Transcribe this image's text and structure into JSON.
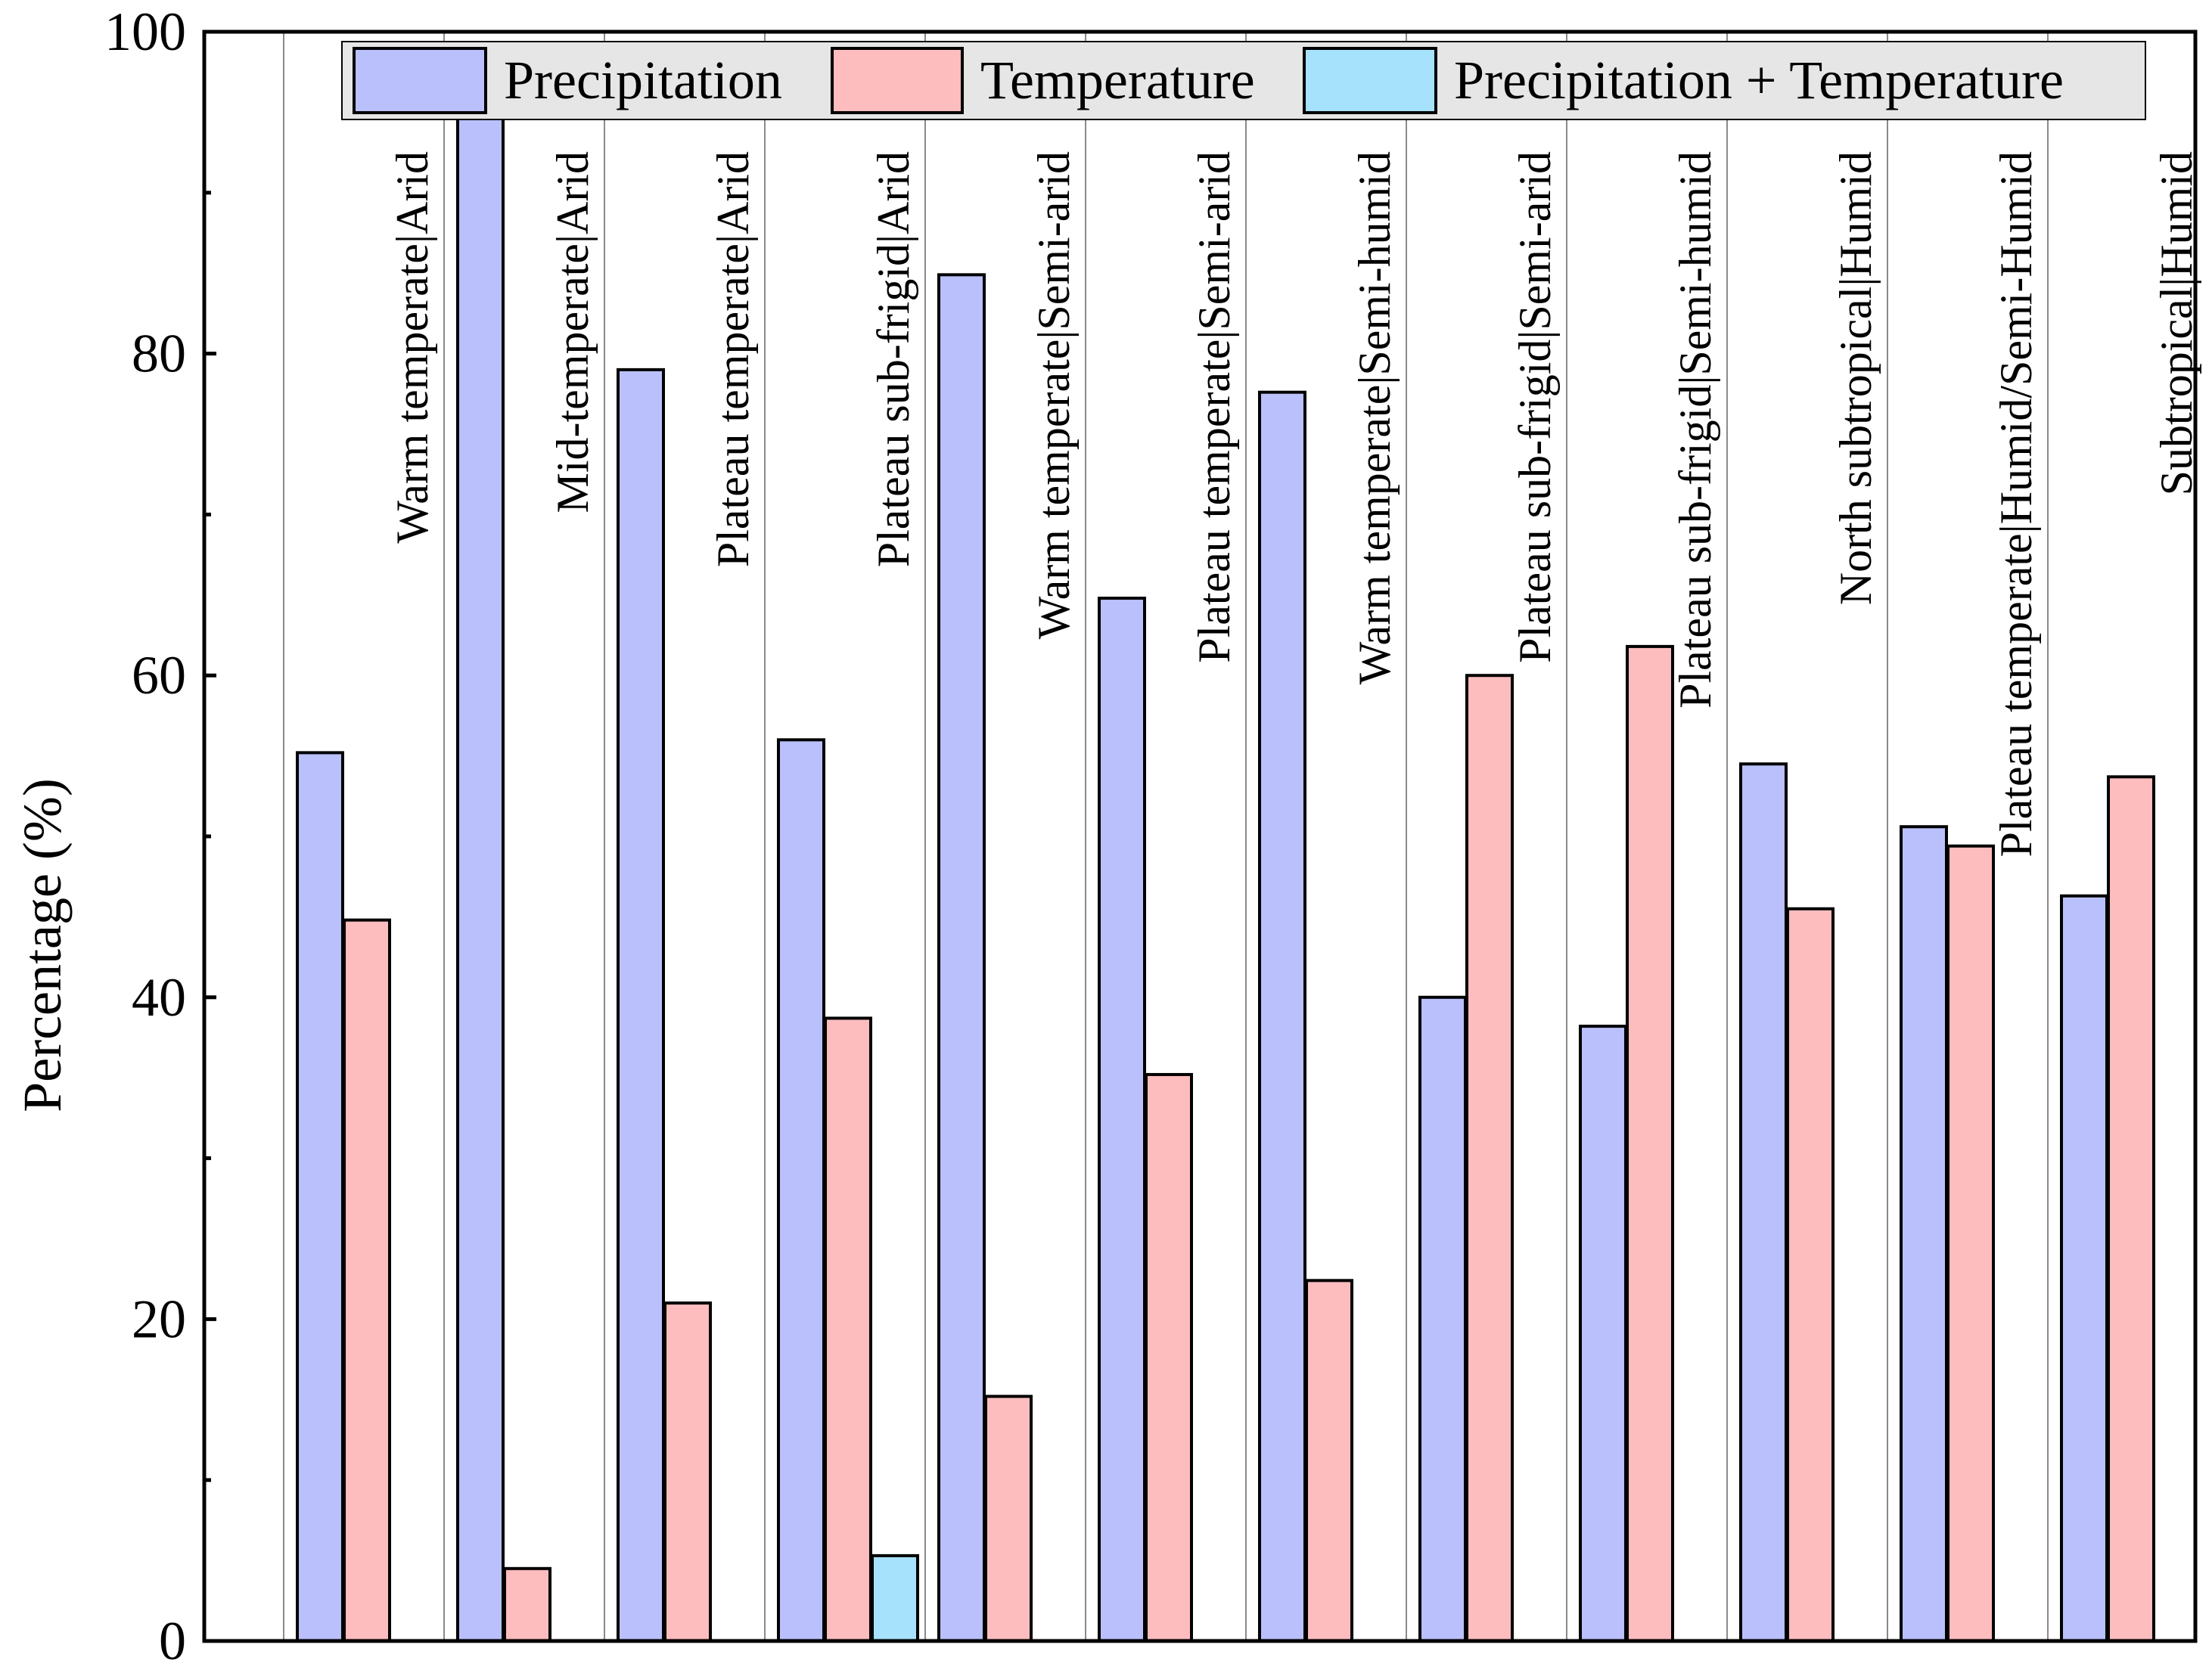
{
  "chart_data": {
    "type": "bar",
    "title": "",
    "xlabel": "",
    "ylabel": "Percentage (%)",
    "ylim": [
      0,
      100
    ],
    "yticks": [
      0,
      20,
      40,
      60,
      80,
      100
    ],
    "ytick_labels": [
      "0",
      "20",
      "40",
      "60",
      "80",
      "100"
    ],
    "grid": false,
    "legend_position": "top-right",
    "categories": [
      "Warm temperate|Arid",
      "Mid-temperate|Arid",
      "Plateau temperate|Arid",
      "Plateau sub-frigid|Arid",
      "Warm temperate|Semi-arid",
      "Plateau temperate|Semi-arid",
      "Warm temperate|Semi-humid",
      "Plateau sub-frigid|Semi-arid",
      "Plateau sub-frigid|Semi-humid",
      "North subtropical|Humid",
      "Plateau temperate|Humid/Semi-Humid",
      "Subtropical|Humid"
    ],
    "series": [
      {
        "name": "Precipitation",
        "color": "#b9c0fb",
        "values": [
          55.2,
          95.5,
          79.0,
          56.0,
          84.9,
          64.8,
          77.6,
          40.0,
          38.2,
          54.5,
          50.6,
          46.3
        ]
      },
      {
        "name": "Temperature",
        "color": "#fdbcbe",
        "values": [
          44.8,
          4.5,
          21.0,
          38.7,
          15.2,
          35.2,
          22.4,
          60.0,
          61.8,
          45.5,
          49.4,
          53.7
        ]
      },
      {
        "name": "Precipitation + Temperature",
        "color": "#a6e2fb",
        "values": [
          0,
          0,
          0,
          5.3,
          0,
          0,
          0,
          0,
          0,
          0,
          0,
          0
        ]
      }
    ]
  }
}
